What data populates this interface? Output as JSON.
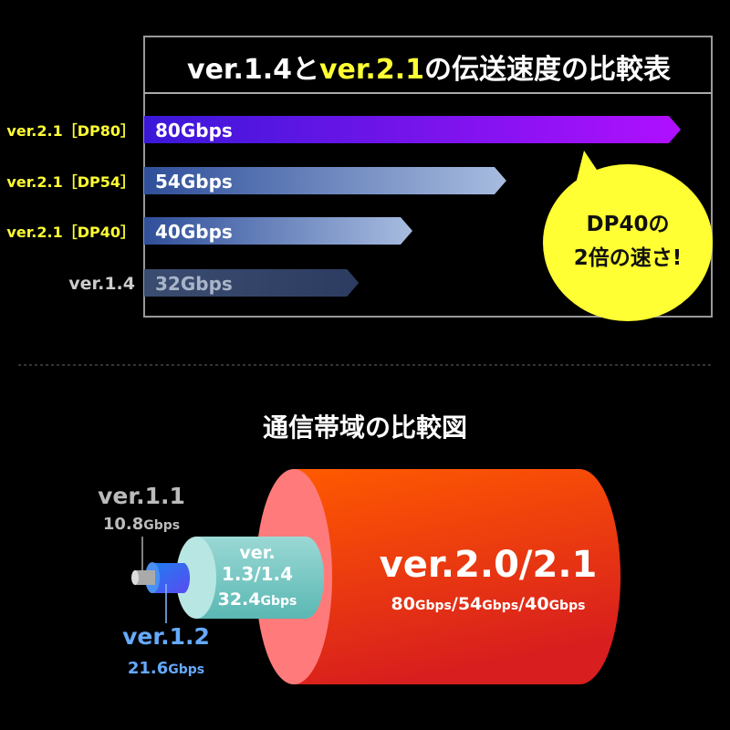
{
  "chart_data": [
    {
      "type": "bar",
      "title_parts": [
        {
          "text": "ver.1.4",
          "color": "#ffffff"
        },
        {
          "text": "と",
          "color": "#ffffff"
        },
        {
          "text": "ver.2.1",
          "color": "#ffff33"
        },
        {
          "text": "の伝送速度の比較表",
          "color": "#ffffff"
        }
      ],
      "categories": [
        "ver.2.1［DP80］",
        "ver.2.1［DP54］",
        "ver.2.1［DP40］",
        "ver.1.4"
      ],
      "values": [
        80,
        54,
        40,
        32
      ],
      "unit": "Gbps",
      "data_labels": [
        "80Gbps",
        "54Gbps",
        "40Gbps",
        "32Gbps"
      ],
      "category_colors": [
        "#ffff33",
        "#ffff33",
        "#ffff33",
        "#cccccc"
      ],
      "orientation": "horizontal",
      "callout": {
        "lines": [
          "DP40の",
          "2倍の速さ!"
        ],
        "color": "#ffff33"
      }
    },
    {
      "type": "diagram",
      "title": "通信帯域の比較図",
      "items": [
        {
          "version": "ver.1.1",
          "value": "10.8",
          "unit": "Gbps",
          "color": "#bbbbbb"
        },
        {
          "version": "ver.1.2",
          "value": "21.6",
          "unit": "Gbps",
          "color": "#66aaff"
        },
        {
          "version_lines": [
            "ver.",
            "1.3/1.4"
          ],
          "value": "32.4",
          "unit": "Gbps",
          "color": "#7fd0cc"
        },
        {
          "version": "ver.2.0/2.1",
          "values": [
            "80",
            "54",
            "40"
          ],
          "unit": "Gbps",
          "color": "#ff4a10"
        }
      ]
    }
  ]
}
